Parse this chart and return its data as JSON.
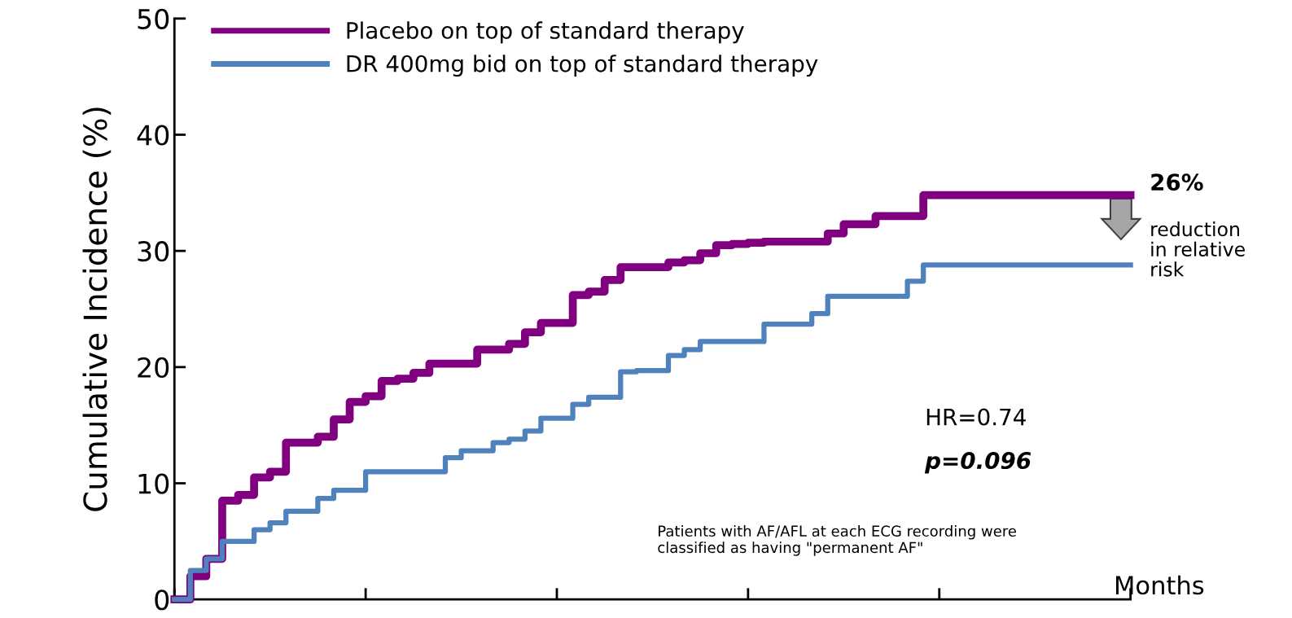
{
  "chart_data": {
    "type": "step",
    "ylabel": "Cumulative Incidence (%)",
    "xlabel": "Months",
    "categories": [
      null,
      null,
      null,
      null,
      null,
      null,
      null,
      null,
      null,
      null,
      null,
      null,
      null,
      null,
      null,
      null,
      null,
      null,
      null,
      null,
      null,
      null,
      null,
      null,
      null,
      null,
      null,
      null,
      null,
      null,
      null,
      null,
      null,
      null,
      null,
      null,
      null,
      null,
      null,
      null,
      null,
      null,
      null,
      null,
      null,
      null,
      null,
      null,
      null,
      null,
      null,
      null,
      null,
      null,
      null,
      null,
      null,
      null,
      null,
      null,
      null
    ],
    "series": [
      {
        "name": "Placebo on top of standard therapy",
        "color": "#800080",
        "values": [
          0,
          2,
          3.5,
          8.5,
          9,
          10.5,
          11,
          13.5,
          13.5,
          14,
          15.5,
          17,
          17.5,
          18.8,
          19,
          19.5,
          20.3,
          20.3,
          20.3,
          21.5,
          21.5,
          22,
          23,
          23.8,
          23.8,
          26.2,
          26.5,
          27.5,
          28.6,
          28.6,
          28.6,
          29,
          29.2,
          29.8,
          30.5,
          30.6,
          30.7,
          30.8,
          30.8,
          30.8,
          30.8,
          31.5,
          32.3,
          32.3,
          33,
          33,
          33,
          34.8,
          34.8,
          34.8,
          34.8,
          34.8,
          34.8,
          34.8,
          34.8,
          34.8,
          34.8,
          34.8,
          34.8,
          34.8,
          34.8
        ]
      },
      {
        "name": "DR 400mg bid on top of standard therapy",
        "color": "#4f81bd",
        "values": [
          0,
          2.5,
          3.5,
          5,
          5,
          6,
          6.6,
          7.6,
          7.6,
          8.7,
          9.4,
          9.4,
          11,
          11,
          11,
          11,
          11,
          12.2,
          12.8,
          12.8,
          13.5,
          13.8,
          14.5,
          15.6,
          15.6,
          16.8,
          17.4,
          17.4,
          19.6,
          19.7,
          19.7,
          21,
          21.5,
          22.2,
          22.2,
          22.2,
          22.2,
          23.7,
          23.7,
          23.7,
          24.6,
          26.1,
          26.1,
          26.1,
          26.1,
          26.1,
          27.4,
          28.8,
          28.8,
          28.8,
          28.8,
          28.8,
          28.8,
          28.8,
          28.8,
          28.8,
          28.8,
          28.8,
          28.8,
          28.8,
          28.8
        ]
      }
    ],
    "ylim": [
      0,
      50
    ],
    "yticks": [
      0,
      10,
      20,
      30,
      40,
      50
    ],
    "legend": "top left",
    "grid": false,
    "line_style": "solid",
    "marker": "none",
    "annotations": [
      "26%",
      "reduction\nin relative\nrisk",
      "HR=0.74",
      "p=0.096",
      "Patients with AF/AFL at each ECG recording were\nclassified as having \"permanent AF\""
    ]
  }
}
